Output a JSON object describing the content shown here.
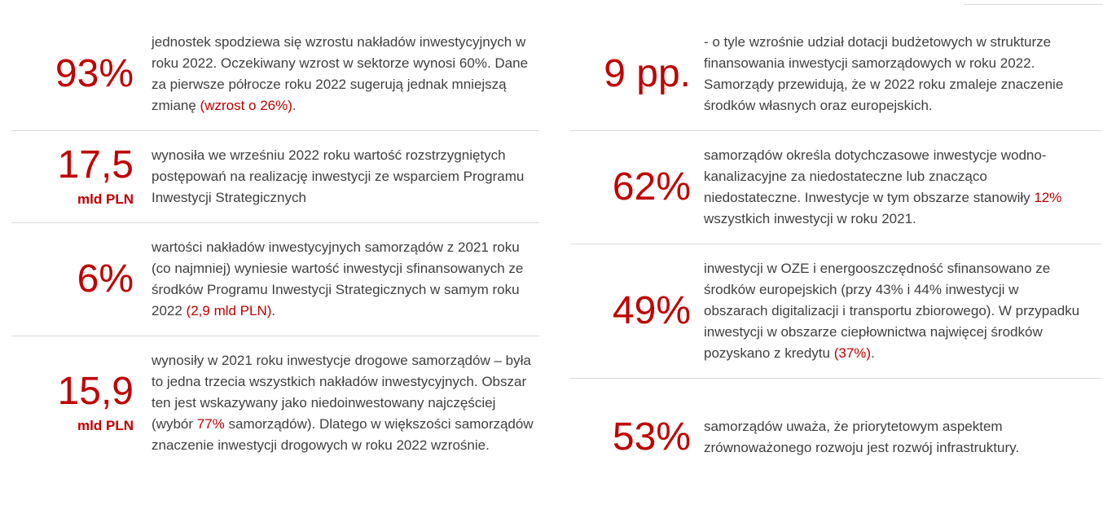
{
  "page": {
    "background": "#ffffff",
    "accent_color": "#c00000",
    "body_text_color": "#404040",
    "divider_color": "#d9d9d9"
  },
  "stats": [
    {
      "id": "left-1",
      "value": "93%",
      "unit": "",
      "text_parts": [
        {
          "text": "jednostek spodziewa się wzrostu nakładów inwestycyjnych w roku 2022. Oczekiwany wzrost w sektorze wynosi 60%. Dane za pierwsze półrocze roku 2022 sugerują jednak mniejszą zmianę ",
          "highlight": false
        },
        {
          "text": "(wzrost o 26%)",
          "highlight": true
        },
        {
          "text": ".",
          "highlight": false
        }
      ]
    },
    {
      "id": "left-2",
      "value": "17,5",
      "unit": "mld PLN",
      "text_parts": [
        {
          "text": "wynosiła we wrześniu 2022 roku wartość rozstrzygniętych postępowań na realizację inwestycji ze wsparciem Programu Inwestycji Strategicznych",
          "highlight": false
        }
      ]
    },
    {
      "id": "left-3",
      "value": "6%",
      "unit": "",
      "text_parts": [
        {
          "text": "wartości nakładów inwestycyjnych samorządów z 2021 roku (co najmniej) wyniesie wartość inwestycji sfinansowanych ze środków Programu Inwestycji Strategicznych w samym roku 2022 ",
          "highlight": false
        },
        {
          "text": "(2,9 mld PLN)",
          "highlight": true
        },
        {
          "text": ".",
          "highlight": false
        }
      ]
    },
    {
      "id": "left-4",
      "value": "15,9",
      "unit": "mld PLN",
      "text_parts": [
        {
          "text": "wynosiły w 2021 roku inwestycje drogowe samorządów – była to jedna trzecia wszystkich nakładów inwestycyjnych. Obszar ten jest wskazywany jako niedoinwestowany najczęściej (wybór ",
          "highlight": false
        },
        {
          "text": "77%",
          "highlight": true
        },
        {
          "text": " samorządów). Dlatego w większości samorządów znaczenie inwestycji drogowych w roku 2022 wzrośnie.",
          "highlight": false
        }
      ]
    },
    {
      "id": "right-1",
      "value": "9 pp.",
      "unit": "",
      "text_parts": [
        {
          "text": "- o tyle wzrośnie udział dotacji budżetowych w strukturze finansowania inwestycji samorządowych w roku 2022. Samorządy przewidują, że w 2022 roku zmaleje znaczenie środków własnych oraz europejskich.",
          "highlight": false
        }
      ]
    },
    {
      "id": "right-2",
      "value": "62%",
      "unit": "",
      "text_parts": [
        {
          "text": "samorządów określa dotychczasowe inwestycje wodno-kanalizacyjne za niedostateczne lub znacząco niedostateczne. Inwestycje w tym obszarze stanowiły ",
          "highlight": false
        },
        {
          "text": "12%",
          "highlight": true
        },
        {
          "text": " wszystkich inwestycji w roku 2021.",
          "highlight": false
        }
      ]
    },
    {
      "id": "right-3",
      "value": "49%",
      "unit": "",
      "text_parts": [
        {
          "text": "inwestycji w OZE i energooszczędność sfinansowano ze środków europejskich (przy 43% i 44% inwestycji w obszarach digitalizacji i transportu zbiorowego). W przypadku inwestycji w obszarze ciepłownictwa najwięcej środków pozyskano z kredytu ",
          "highlight": false
        },
        {
          "text": "(37%)",
          "highlight": true
        },
        {
          "text": ".",
          "highlight": false
        }
      ]
    },
    {
      "id": "right-4",
      "value": "53%",
      "unit": "",
      "text_parts": [
        {
          "text": "samorządów uważa, że priorytetowym aspektem zrównoważonego rozwoju jest rozwój infrastruktury.",
          "highlight": false
        }
      ]
    }
  ]
}
